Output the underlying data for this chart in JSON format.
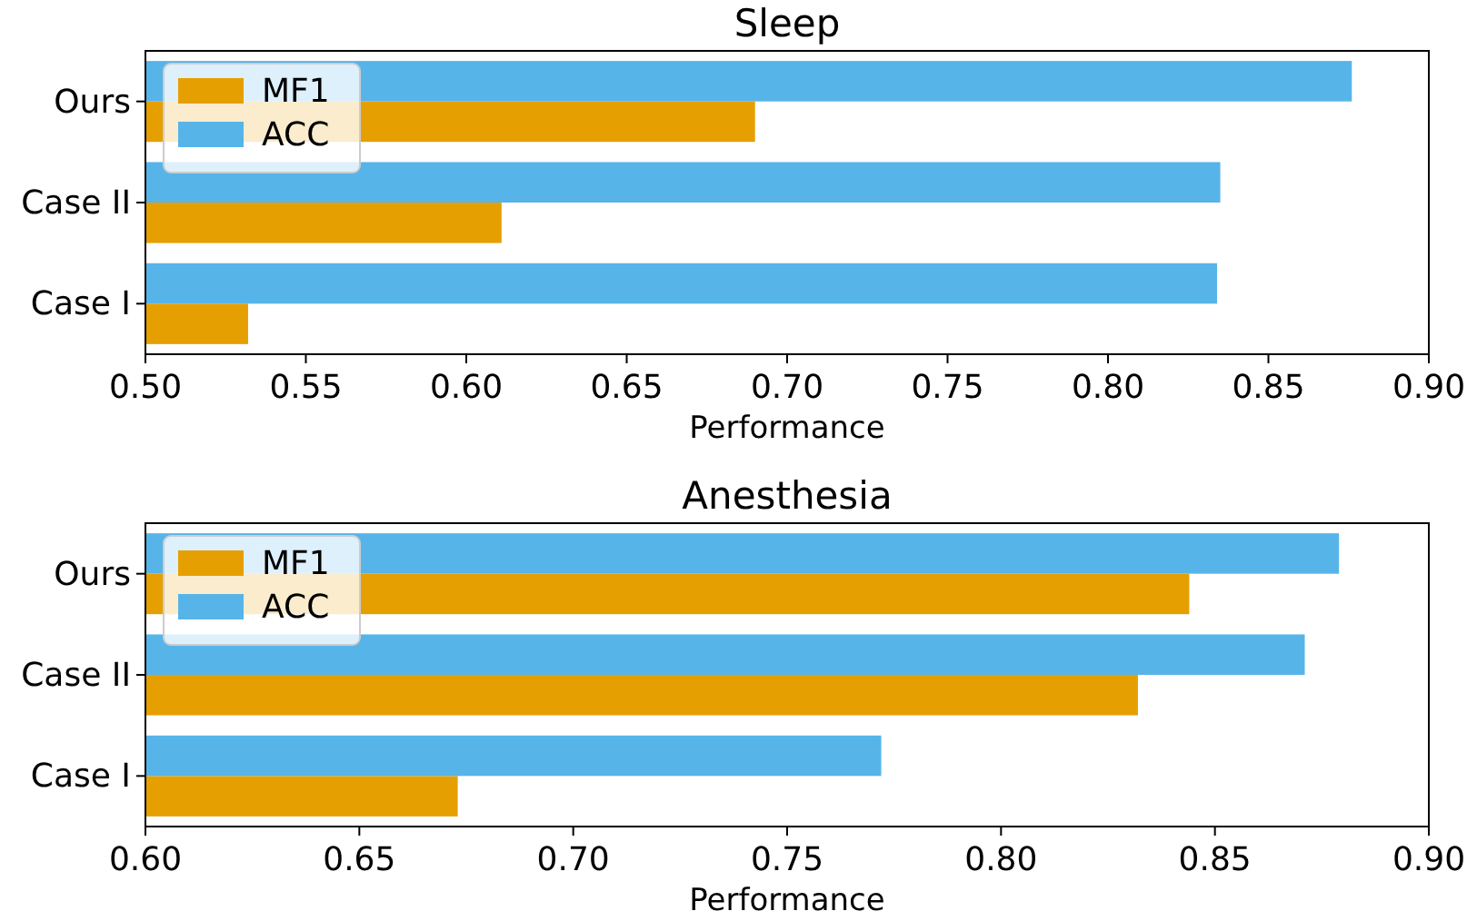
{
  "chart_data": [
    {
      "type": "bar",
      "orientation": "horizontal",
      "title": "Sleep",
      "xlabel": "Performance",
      "categories": [
        "Ours",
        "Case II",
        "Case I"
      ],
      "xlim": [
        0.5,
        0.9
      ],
      "xticks": [
        {
          "value": 0.5,
          "label": "0.50"
        },
        {
          "value": 0.55,
          "label": "0.55"
        },
        {
          "value": 0.6,
          "label": "0.60"
        },
        {
          "value": 0.65,
          "label": "0.65"
        },
        {
          "value": 0.7,
          "label": "0.70"
        },
        {
          "value": 0.75,
          "label": "0.75"
        },
        {
          "value": 0.8,
          "label": "0.80"
        },
        {
          "value": 0.85,
          "label": "0.85"
        },
        {
          "value": 0.9,
          "label": "0.90"
        }
      ],
      "legend": "top left",
      "series": [
        {
          "name": "MF1",
          "color": "#e69f00",
          "values": [
            0.69,
            0.611,
            0.532
          ]
        },
        {
          "name": "ACC",
          "color": "#56b4e9",
          "values": [
            0.876,
            0.835,
            0.834
          ]
        }
      ]
    },
    {
      "type": "bar",
      "orientation": "horizontal",
      "title": "Anesthesia",
      "xlabel": "Performance",
      "categories": [
        "Ours",
        "Case II",
        "Case I"
      ],
      "xlim": [
        0.6,
        0.9
      ],
      "xticks": [
        {
          "value": 0.6,
          "label": "0.60"
        },
        {
          "value": 0.65,
          "label": "0.65"
        },
        {
          "value": 0.7,
          "label": "0.70"
        },
        {
          "value": 0.75,
          "label": "0.75"
        },
        {
          "value": 0.8,
          "label": "0.80"
        },
        {
          "value": 0.85,
          "label": "0.85"
        },
        {
          "value": 0.9,
          "label": "0.90"
        }
      ],
      "legend": "top left",
      "series": [
        {
          "name": "MF1",
          "color": "#e69f00",
          "values": [
            0.844,
            0.832,
            0.673
          ]
        },
        {
          "name": "ACC",
          "color": "#56b4e9",
          "values": [
            0.879,
            0.871,
            0.772
          ]
        }
      ]
    }
  ]
}
